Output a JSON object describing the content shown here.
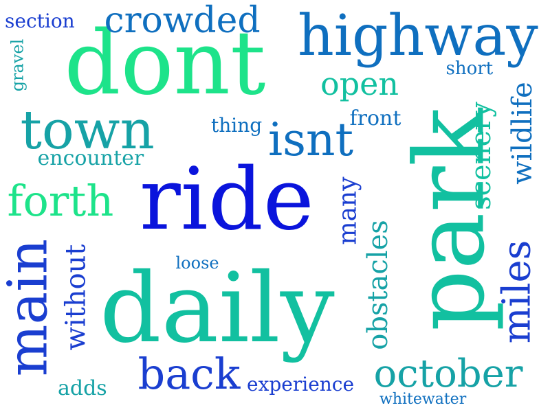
{
  "colors": {
    "blue": "#0a14dc",
    "royal": "#1a3ed0",
    "ocean": "#0f6fbf",
    "teal": "#16a2a6",
    "sea": "#12c0a0",
    "mint": "#1de38a"
  },
  "words": [
    {
      "text": "dont",
      "color": "mint"
    },
    {
      "text": "park",
      "color": "sea"
    },
    {
      "text": "daily",
      "color": "sea"
    },
    {
      "text": "ride",
      "color": "blue"
    },
    {
      "text": "highway",
      "color": "ocean"
    },
    {
      "text": "town",
      "color": "teal"
    },
    {
      "text": "main",
      "color": "royal"
    },
    {
      "text": "forth",
      "color": "mint"
    },
    {
      "text": "isnt",
      "color": "ocean"
    },
    {
      "text": "back",
      "color": "royal"
    },
    {
      "text": "october",
      "color": "teal"
    },
    {
      "text": "crowded",
      "color": "ocean"
    },
    {
      "text": "miles",
      "color": "royal"
    },
    {
      "text": "open",
      "color": "sea"
    },
    {
      "text": "obstacles",
      "color": "teal"
    },
    {
      "text": "without",
      "color": "royal"
    },
    {
      "text": "scenery",
      "color": "sea"
    },
    {
      "text": "wildlife",
      "color": "ocean"
    },
    {
      "text": "many",
      "color": "royal"
    },
    {
      "text": "encounter",
      "color": "teal"
    },
    {
      "text": "experience",
      "color": "royal"
    },
    {
      "text": "section",
      "color": "royal"
    },
    {
      "text": "front",
      "color": "ocean"
    },
    {
      "text": "thing",
      "color": "ocean"
    },
    {
      "text": "loose",
      "color": "ocean"
    },
    {
      "text": "short",
      "color": "ocean"
    },
    {
      "text": "adds",
      "color": "teal"
    },
    {
      "text": "gravel",
      "color": "teal"
    },
    {
      "text": "whitewater",
      "color": "ocean"
    }
  ]
}
